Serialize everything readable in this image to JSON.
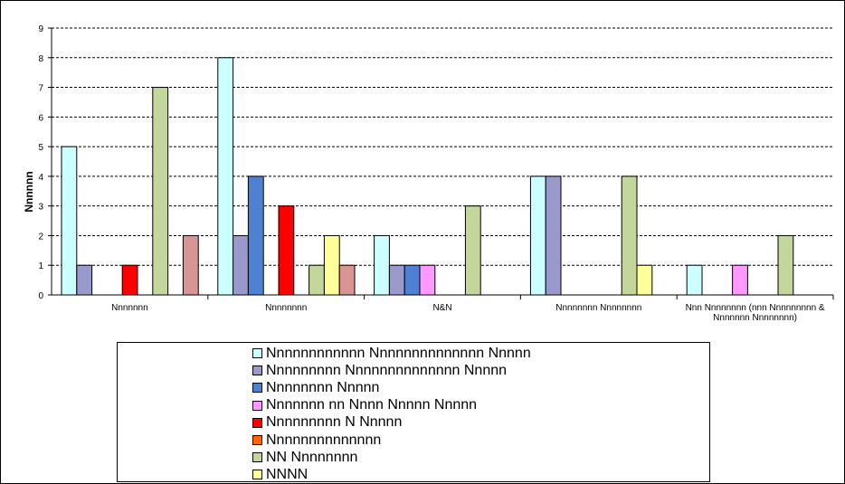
{
  "chart_data": {
    "type": "bar",
    "title": "",
    "xlabel": "",
    "ylabel": "Nnnnnn",
    "ylim": [
      0,
      9
    ],
    "yticks": [
      0,
      1,
      2,
      3,
      4,
      5,
      6,
      7,
      8,
      9
    ],
    "grid": true,
    "legend_position": "bottom",
    "categories": [
      "Nnnnnnn",
      "Nnnnnnnn",
      "N&N",
      "Nnnnnnnn Nnnnnnnn",
      "Nnn Nnnnnnnn (nnn Nnnnnnnnn & Nnnnnnn Nnnnnnnn)"
    ],
    "series": [
      {
        "name": "Nnnnnnnnnnnn Nnnnnnnnnnnnnn Nnnnn",
        "color": "#CCFFFF",
        "values": [
          5,
          8,
          2,
          4,
          1
        ]
      },
      {
        "name": "Nnnnnnnnn Nnnnnnnnnnnnnn Nnnnn",
        "color": "#9999CC",
        "values": [
          1,
          2,
          1,
          4,
          0
        ]
      },
      {
        "name": "Nnnnnnnn Nnnnn",
        "color": "#4F81D2",
        "values": [
          0,
          4,
          1,
          0,
          0
        ]
      },
      {
        "name": "Nnnnnnn nn Nnnn Nnnnn Nnnnn",
        "color": "#FF99FF",
        "values": [
          0,
          0,
          1,
          0,
          1
        ]
      },
      {
        "name": "Nnnnnnnnn N Nnnnn",
        "color": "#FF0000",
        "values": [
          1,
          3,
          0,
          0,
          0
        ]
      },
      {
        "name": "Nnnnnnnnnnnnnn",
        "color": "#FF6600",
        "values": [
          0,
          0,
          0,
          0,
          0
        ]
      },
      {
        "name": "NN Nnnnnnnn",
        "color": "#C3D69B",
        "values": [
          7,
          1,
          3,
          4,
          2
        ]
      },
      {
        "name": "NNNN",
        "color": "#FFFF99",
        "values": [
          0,
          2,
          0,
          1,
          0
        ]
      },
      {
        "name": "",
        "color": "#D99594",
        "values": [
          2,
          1,
          0,
          0,
          0
        ]
      }
    ]
  }
}
